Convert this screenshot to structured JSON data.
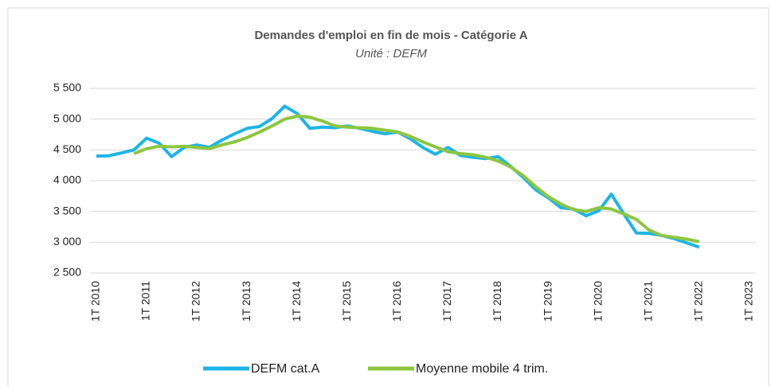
{
  "chart_data": {
    "type": "line",
    "title": "Demandes d'emploi en fin de mois - Catégorie A",
    "subtitle": "Unité : DEFM",
    "categories": [
      "1T 2010",
      null,
      null,
      null,
      "1T 2011",
      null,
      null,
      null,
      "1T 2012",
      null,
      null,
      null,
      "1T 2013",
      null,
      null,
      null,
      "1T 2014",
      null,
      null,
      null,
      "1T 2015",
      null,
      null,
      null,
      "1T 2016",
      null,
      null,
      null,
      "1T 2017",
      null,
      null,
      null,
      "1T 2018",
      null,
      null,
      null,
      "1T 2019",
      null,
      null,
      null,
      "1T 2020",
      null,
      null,
      null,
      "1T 2021",
      null,
      null,
      null,
      "1T 2022",
      null,
      null,
      null,
      "1T 2023"
    ],
    "series": [
      {
        "name": "DEFM cat.A",
        "color": "#1eb4e6",
        "values": [
          4400,
          4405,
          4450,
          4500,
          4690,
          4610,
          4390,
          4540,
          4580,
          4540,
          4660,
          4760,
          4850,
          4880,
          5010,
          5210,
          5090,
          4850,
          4870,
          4860,
          4890,
          4850,
          4800,
          4760,
          4790,
          4680,
          4540,
          4430,
          4540,
          4410,
          4380,
          4360,
          4390,
          4230,
          4050,
          3850,
          3720,
          3560,
          3540,
          3430,
          3510,
          3780,
          3460,
          3150,
          3145,
          3110,
          3060,
          2990,
          2920,
          null,
          null,
          null,
          null
        ]
      },
      {
        "name": "Moyenne mobile 4 trim.",
        "color": "#8dc63f",
        "values": [
          null,
          null,
          null,
          4440,
          4520,
          4560,
          4550,
          4560,
          4540,
          4520,
          4580,
          4630,
          4700,
          4790,
          4890,
          5000,
          5050,
          5030,
          4970,
          4890,
          4870,
          4860,
          4850,
          4820,
          4790,
          4720,
          4630,
          4550,
          4470,
          4440,
          4420,
          4380,
          4320,
          4220,
          4080,
          3900,
          3740,
          3620,
          3530,
          3500,
          3560,
          3540,
          3460,
          3370,
          3200,
          3110,
          3080,
          3050,
          3010,
          null,
          null,
          null,
          null
        ]
      }
    ],
    "ylim": [
      2500,
      5500
    ],
    "yticks": [
      {
        "value": 2500,
        "label": "2 500"
      },
      {
        "value": 3000,
        "label": "3 000"
      },
      {
        "value": 3500,
        "label": "3 500"
      },
      {
        "value": 4000,
        "label": "4 000"
      },
      {
        "value": 4500,
        "label": "4 500"
      },
      {
        "value": 5000,
        "label": "5 000"
      },
      {
        "value": 5500,
        "label": "5 500"
      }
    ],
    "grid": true,
    "legend": "bottom"
  }
}
